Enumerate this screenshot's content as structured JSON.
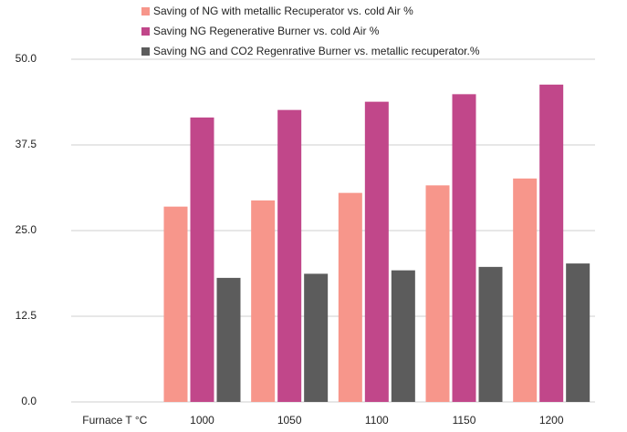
{
  "chart_data": {
    "type": "bar",
    "categories": [
      "Furnace T °C",
      "1000",
      "1050",
      "1100",
      "1150",
      "1200"
    ],
    "series": [
      {
        "name": "Saving of NG with metallic Recuperator  vs. cold Air %",
        "color": "#f7968b",
        "values": [
          null,
          28.5,
          29.4,
          30.5,
          31.6,
          32.6
        ]
      },
      {
        "name": "Saving NG  Regenerative Burner  vs. cold Air  %",
        "color": "#c1478a",
        "values": [
          null,
          41.5,
          42.6,
          43.8,
          44.9,
          46.3
        ]
      },
      {
        "name": "Saving NG and CO2 Regenrative Burner vs.  metallic recuperator.%",
        "color": "#5c5c5c",
        "values": [
          null,
          18.1,
          18.7,
          19.2,
          19.7,
          20.2
        ]
      }
    ],
    "ylim": [
      0,
      50
    ],
    "yticks": [
      {
        "value": 0,
        "label": "0.0"
      },
      12.5,
      {
        "value": 25,
        "label": "25.0"
      },
      37.5,
      {
        "value": 50,
        "label": "50.0"
      }
    ],
    "grid": true
  }
}
